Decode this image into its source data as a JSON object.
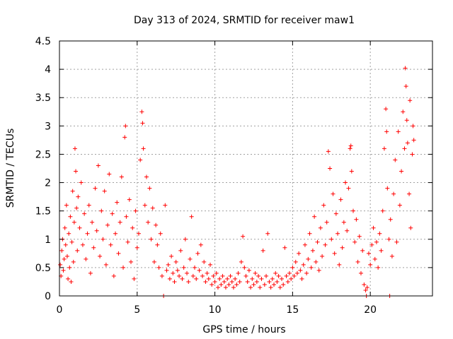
{
  "chart_data": {
    "type": "scatter",
    "title": "Day 313 of 2024, SRMTID for receiver maw1",
    "xlabel": "GPS time / hours",
    "ylabel": "SRMTID / TECUs",
    "xlim": [
      0,
      24
    ],
    "ylim": [
      0,
      4.5
    ],
    "xticks": [
      0,
      5,
      10,
      15,
      20
    ],
    "xtick_labels": [
      "0",
      "5",
      "10",
      "15",
      "20"
    ],
    "yticks": [
      0,
      0.5,
      1,
      1.5,
      2,
      2.5,
      3,
      3.5,
      4,
      4.5
    ],
    "ytick_labels": [
      "0",
      "0.5",
      "1",
      "1.5",
      "2",
      "2.5",
      "3",
      "3.5",
      "4",
      "4.5"
    ],
    "grid": true,
    "marker": "+",
    "color": "#ff0000",
    "series": [
      {
        "name": "SRMTID",
        "points": [
          [
            0.05,
            0.55
          ],
          [
            0.1,
            0.35
          ],
          [
            0.15,
            0.8
          ],
          [
            0.2,
            1.0
          ],
          [
            0.25,
            0.45
          ],
          [
            0.3,
            0.65
          ],
          [
            0.35,
            1.2
          ],
          [
            0.4,
            0.9
          ],
          [
            0.45,
            1.6
          ],
          [
            0.5,
            0.7
          ],
          [
            0.55,
            0.3
          ],
          [
            0.6,
            1.1
          ],
          [
            0.65,
            0.5
          ],
          [
            0.7,
            1.4
          ],
          [
            0.75,
            0.25
          ],
          [
            0.8,
            0.95
          ],
          [
            0.85,
            1.85
          ],
          [
            0.9,
            0.6
          ],
          [
            0.95,
            1.3
          ],
          [
            1.0,
            2.6
          ],
          [
            1.05,
            2.2
          ],
          [
            1.1,
            1.55
          ],
          [
            1.15,
            0.8
          ],
          [
            1.2,
            1.75
          ],
          [
            1.3,
            1.2
          ],
          [
            1.4,
            2.0
          ],
          [
            1.5,
            0.9
          ],
          [
            1.6,
            1.45
          ],
          [
            1.7,
            0.65
          ],
          [
            1.8,
            1.1
          ],
          [
            1.9,
            1.6
          ],
          [
            2.0,
            0.4
          ],
          [
            2.1,
            1.3
          ],
          [
            2.2,
            0.85
          ],
          [
            2.3,
            1.9
          ],
          [
            2.4,
            1.15
          ],
          [
            2.5,
            2.3
          ],
          [
            2.6,
            0.7
          ],
          [
            2.7,
            1.5
          ],
          [
            2.8,
            1.0
          ],
          [
            2.9,
            1.85
          ],
          [
            3.0,
            0.55
          ],
          [
            3.1,
            1.25
          ],
          [
            3.2,
            2.15
          ],
          [
            3.3,
            0.9
          ],
          [
            3.4,
            1.45
          ],
          [
            3.5,
            0.35
          ],
          [
            3.6,
            1.1
          ],
          [
            3.7,
            1.65
          ],
          [
            3.8,
            0.75
          ],
          [
            3.9,
            1.3
          ],
          [
            4.0,
            2.1
          ],
          [
            4.1,
            0.5
          ],
          [
            4.2,
            2.8
          ],
          [
            4.25,
            3.0
          ],
          [
            4.3,
            1.4
          ],
          [
            4.4,
            0.95
          ],
          [
            4.5,
            1.7
          ],
          [
            4.6,
            0.6
          ],
          [
            4.7,
            1.2
          ],
          [
            4.8,
            0.3
          ],
          [
            4.9,
            1.5
          ],
          [
            5.0,
            0.85
          ],
          [
            5.1,
            1.1
          ],
          [
            5.2,
            2.4
          ],
          [
            5.3,
            3.25
          ],
          [
            5.35,
            3.05
          ],
          [
            5.4,
            2.6
          ],
          [
            5.5,
            1.6
          ],
          [
            5.6,
            2.1
          ],
          [
            5.7,
            1.3
          ],
          [
            5.8,
            1.9
          ],
          [
            5.9,
            1.0
          ],
          [
            6.0,
            1.55
          ],
          [
            6.1,
            0.6
          ],
          [
            6.2,
            1.25
          ],
          [
            6.3,
            0.9
          ],
          [
            6.4,
            0.5
          ],
          [
            6.5,
            1.1
          ],
          [
            6.6,
            0.35
          ],
          [
            6.7,
            0.0
          ],
          [
            6.8,
            1.6
          ],
          [
            6.9,
            0.45
          ],
          [
            7.0,
            0.55
          ],
          [
            7.1,
            0.3
          ],
          [
            7.2,
            0.7
          ],
          [
            7.3,
            0.4
          ],
          [
            7.4,
            0.25
          ],
          [
            7.5,
            0.6
          ],
          [
            7.6,
            0.45
          ],
          [
            7.7,
            0.35
          ],
          [
            7.8,
            0.8
          ],
          [
            7.9,
            0.3
          ],
          [
            8.0,
            0.5
          ],
          [
            8.1,
            1.0
          ],
          [
            8.2,
            0.4
          ],
          [
            8.3,
            0.25
          ],
          [
            8.4,
            0.65
          ],
          [
            8.5,
            1.4
          ],
          [
            8.6,
            0.35
          ],
          [
            8.7,
            0.5
          ],
          [
            8.8,
            0.3
          ],
          [
            8.9,
            0.75
          ],
          [
            9.0,
            0.45
          ],
          [
            9.1,
            0.9
          ],
          [
            9.2,
            0.35
          ],
          [
            9.3,
            0.6
          ],
          [
            9.4,
            0.25
          ],
          [
            9.5,
            0.4
          ],
          [
            9.6,
            0.3
          ],
          [
            9.7,
            0.55
          ],
          [
            9.8,
            0.2
          ],
          [
            9.9,
            0.35
          ],
          [
            10.0,
            0.25
          ],
          [
            10.1,
            0.4
          ],
          [
            10.2,
            0.15
          ],
          [
            10.3,
            0.3
          ],
          [
            10.4,
            0.2
          ],
          [
            10.5,
            0.35
          ],
          [
            10.6,
            0.25
          ],
          [
            10.7,
            0.15
          ],
          [
            10.8,
            0.3
          ],
          [
            10.9,
            0.2
          ],
          [
            11.0,
            0.35
          ],
          [
            11.1,
            0.25
          ],
          [
            11.2,
            0.15
          ],
          [
            11.3,
            0.3
          ],
          [
            11.4,
            0.2
          ],
          [
            11.5,
            0.4
          ],
          [
            11.6,
            0.25
          ],
          [
            11.7,
            0.6
          ],
          [
            11.8,
            1.05
          ],
          [
            11.9,
            0.5
          ],
          [
            12.0,
            0.35
          ],
          [
            12.1,
            0.25
          ],
          [
            12.2,
            0.45
          ],
          [
            12.3,
            0.15
          ],
          [
            12.4,
            0.3
          ],
          [
            12.5,
            0.2
          ],
          [
            12.6,
            0.4
          ],
          [
            12.7,
            0.25
          ],
          [
            12.8,
            0.35
          ],
          [
            12.9,
            0.15
          ],
          [
            13.0,
            0.3
          ],
          [
            13.1,
            0.8
          ],
          [
            13.2,
            0.2
          ],
          [
            13.3,
            0.35
          ],
          [
            13.4,
            1.1
          ],
          [
            13.5,
            0.25
          ],
          [
            13.6,
            0.15
          ],
          [
            13.7,
            0.3
          ],
          [
            13.8,
            0.2
          ],
          [
            13.9,
            0.4
          ],
          [
            14.0,
            0.25
          ],
          [
            14.1,
            0.35
          ],
          [
            14.2,
            0.15
          ],
          [
            14.3,
            0.3
          ],
          [
            14.4,
            0.2
          ],
          [
            14.5,
            0.85
          ],
          [
            14.6,
            0.35
          ],
          [
            14.7,
            0.25
          ],
          [
            14.8,
            0.4
          ],
          [
            14.9,
            0.3
          ],
          [
            15.0,
            0.5
          ],
          [
            15.1,
            0.35
          ],
          [
            15.2,
            0.6
          ],
          [
            15.3,
            0.4
          ],
          [
            15.4,
            0.75
          ],
          [
            15.5,
            0.45
          ],
          [
            15.6,
            0.3
          ],
          [
            15.7,
            0.55
          ],
          [
            15.8,
            0.9
          ],
          [
            15.9,
            0.4
          ],
          [
            16.0,
            0.65
          ],
          [
            16.1,
            1.1
          ],
          [
            16.2,
            0.5
          ],
          [
            16.3,
            0.8
          ],
          [
            16.4,
            1.4
          ],
          [
            16.5,
            0.6
          ],
          [
            16.6,
            0.95
          ],
          [
            16.7,
            0.45
          ],
          [
            16.8,
            1.2
          ],
          [
            16.9,
            0.7
          ],
          [
            17.0,
            1.6
          ],
          [
            17.1,
            0.9
          ],
          [
            17.2,
            1.3
          ],
          [
            17.3,
            2.55
          ],
          [
            17.4,
            2.25
          ],
          [
            17.5,
            1.0
          ],
          [
            17.6,
            1.8
          ],
          [
            17.7,
            0.75
          ],
          [
            17.8,
            1.45
          ],
          [
            17.9,
            1.1
          ],
          [
            18.0,
            0.55
          ],
          [
            18.1,
            1.7
          ],
          [
            18.2,
            0.85
          ],
          [
            18.3,
            1.3
          ],
          [
            18.4,
            2.0
          ],
          [
            18.5,
            1.15
          ],
          [
            18.6,
            1.9
          ],
          [
            18.7,
            2.6
          ],
          [
            18.75,
            2.65
          ],
          [
            18.8,
            2.2
          ],
          [
            18.9,
            1.5
          ],
          [
            19.0,
            0.95
          ],
          [
            19.1,
            1.35
          ],
          [
            19.2,
            0.6
          ],
          [
            19.3,
            1.05
          ],
          [
            19.4,
            0.4
          ],
          [
            19.5,
            0.8
          ],
          [
            19.6,
            0.2
          ],
          [
            19.7,
            0.1
          ],
          [
            19.75,
            0.0
          ],
          [
            19.8,
            0.15
          ],
          [
            19.9,
            0.75
          ],
          [
            20.0,
            0.55
          ],
          [
            20.1,
            0.9
          ],
          [
            20.2,
            1.2
          ],
          [
            20.3,
            0.65
          ],
          [
            20.4,
            0.95
          ],
          [
            20.5,
            0.5
          ],
          [
            20.6,
            1.1
          ],
          [
            20.7,
            0.8
          ],
          [
            20.8,
            1.5
          ],
          [
            20.9,
            2.6
          ],
          [
            21.0,
            3.3
          ],
          [
            21.05,
            2.9
          ],
          [
            21.1,
            1.9
          ],
          [
            21.2,
            1.0
          ],
          [
            21.25,
            0.0
          ],
          [
            21.3,
            1.35
          ],
          [
            21.4,
            0.7
          ],
          [
            21.5,
            1.8
          ],
          [
            21.6,
            2.4
          ],
          [
            21.7,
            0.95
          ],
          [
            21.8,
            2.9
          ],
          [
            21.9,
            1.6
          ],
          [
            22.0,
            2.2
          ],
          [
            22.1,
            3.25
          ],
          [
            22.2,
            2.6
          ],
          [
            22.25,
            4.02
          ],
          [
            22.3,
            3.7
          ],
          [
            22.35,
            3.1
          ],
          [
            22.4,
            2.7
          ],
          [
            22.5,
            1.8
          ],
          [
            22.55,
            3.45
          ],
          [
            22.6,
            1.2
          ],
          [
            22.7,
            2.5
          ],
          [
            22.75,
            3.0
          ],
          [
            22.8,
            2.75
          ]
        ]
      }
    ]
  }
}
